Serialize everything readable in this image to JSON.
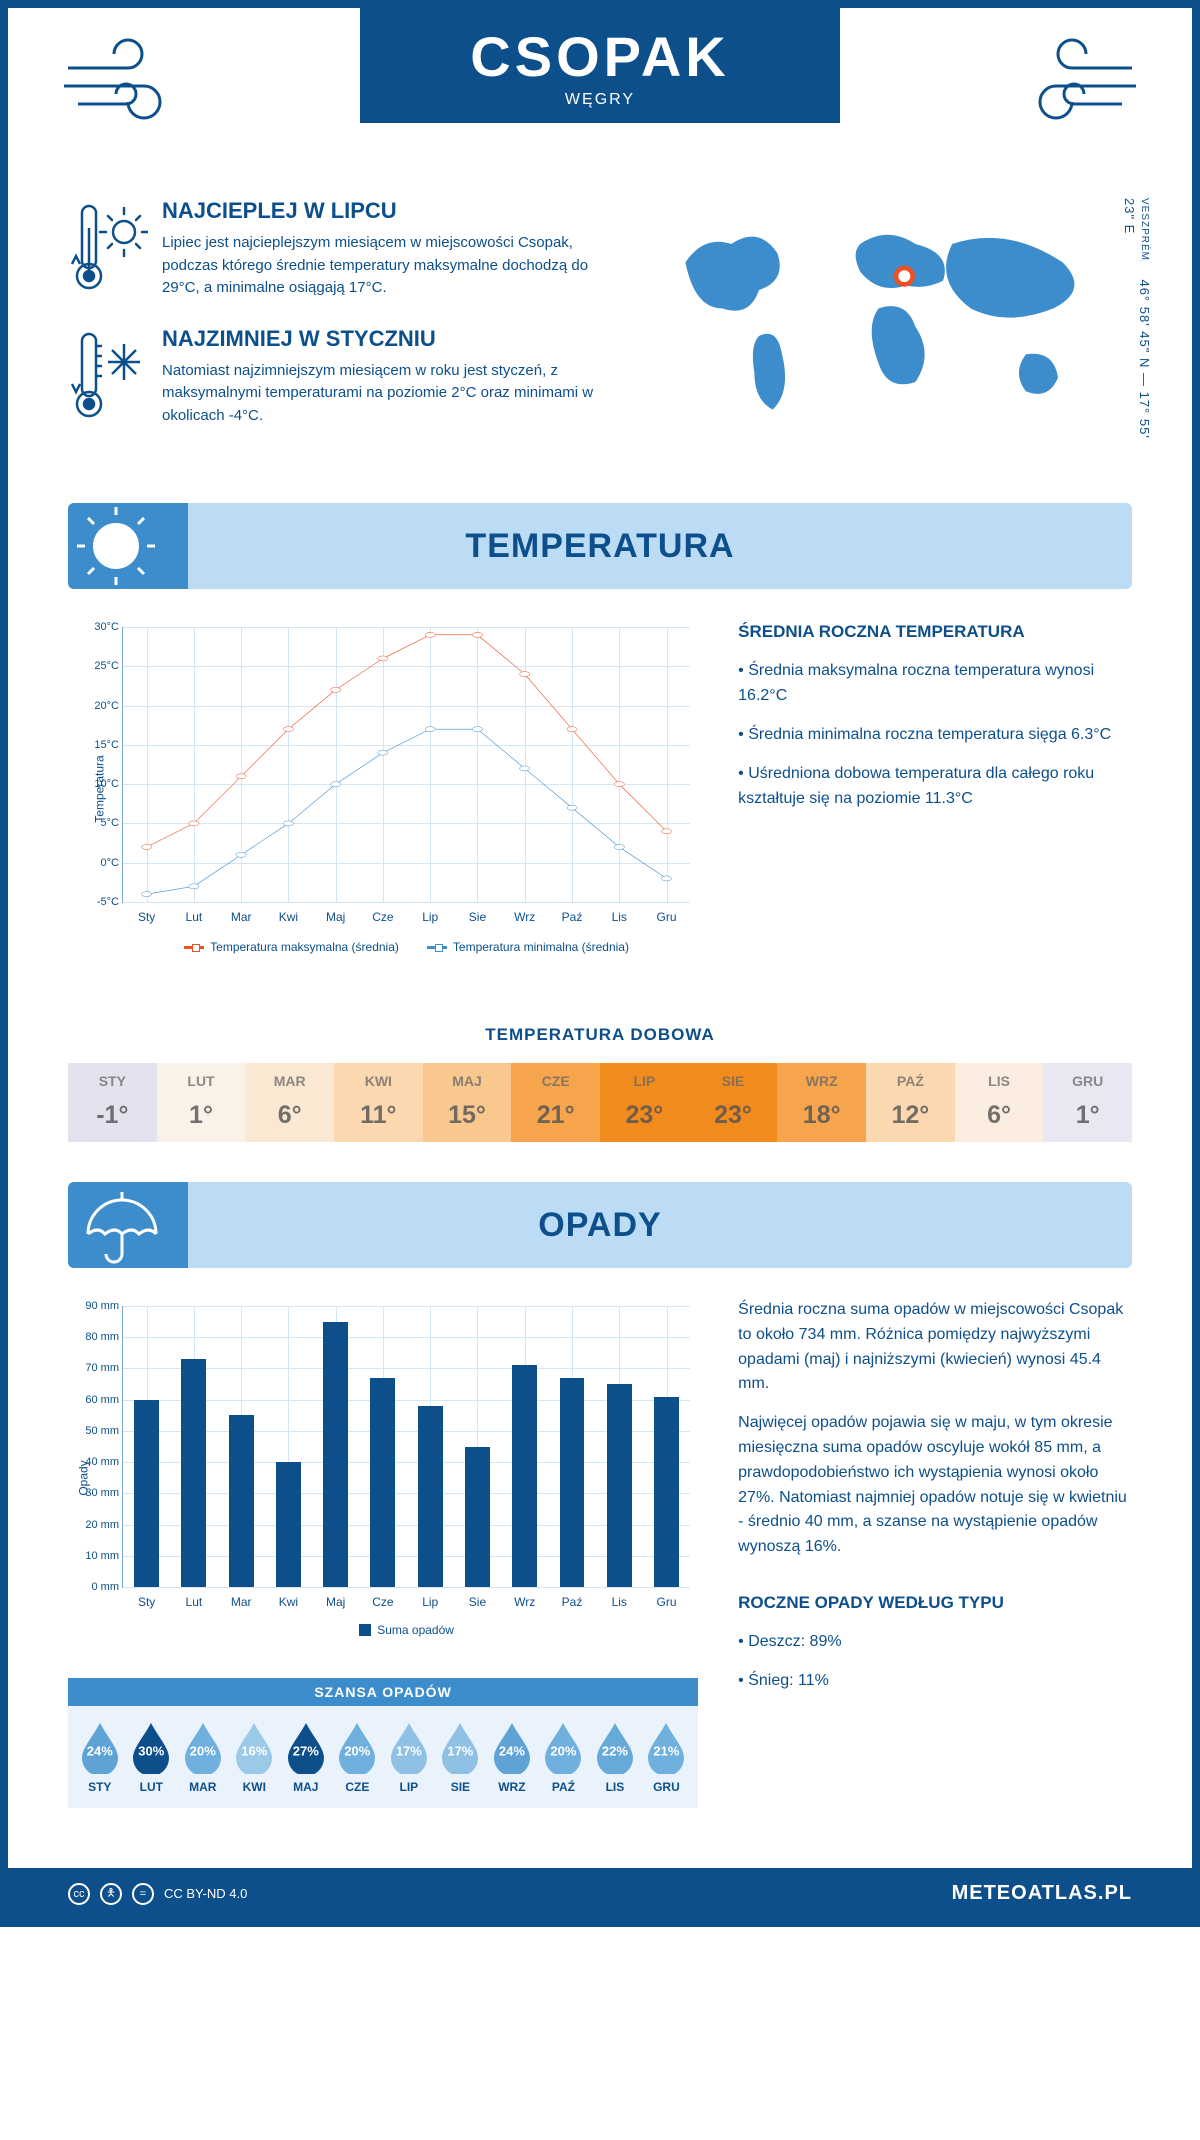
{
  "header": {
    "city": "CSOPAK",
    "country": "WĘGRY"
  },
  "coords": "46° 58' 45\" N — 17° 55' 23\" E",
  "region_label": "VESZPRÉM",
  "intro": {
    "hot": {
      "title": "NAJCIEPLEJ W LIPCU",
      "text": "Lipiec jest najcieplejszym miesiącem w miejscowości Csopak, podczas którego średnie temperatury maksymalne dochodzą do 29°C, a minimalne osiągają 17°C."
    },
    "cold": {
      "title": "NAJZIMNIEJ W STYCZNIU",
      "text": "Natomiast najzimniejszym miesiącem w roku jest styczeń, z maksymalnymi temperaturami na poziomie 2°C oraz minimami w okolicach -4°C."
    }
  },
  "months": [
    "Sty",
    "Lut",
    "Mar",
    "Kwi",
    "Maj",
    "Cze",
    "Lip",
    "Sie",
    "Wrz",
    "Paź",
    "Lis",
    "Gru"
  ],
  "months_upper": [
    "STY",
    "LUT",
    "MAR",
    "KWI",
    "MAJ",
    "CZE",
    "LIP",
    "SIE",
    "WRZ",
    "PAŹ",
    "LIS",
    "GRU"
  ],
  "temperature": {
    "section_label": "TEMPERATURA",
    "y_axis_label": "Temperatura",
    "y_ticks": [
      -5,
      0,
      5,
      10,
      15,
      20,
      25,
      30
    ],
    "y_tick_labels": [
      "-5°C",
      "0°C",
      "5°C",
      "10°C",
      "15°C",
      "20°C",
      "25°C",
      "30°C"
    ],
    "ylim": [
      -5,
      30
    ],
    "max_color": "#f04e23",
    "min_color": "#3d8ccc",
    "max_series": [
      2,
      5,
      11,
      17,
      22,
      26,
      29,
      29,
      24,
      17,
      10,
      4
    ],
    "min_series": [
      -4,
      -3,
      1,
      5,
      10,
      14,
      17,
      17,
      12,
      7,
      2,
      -2
    ],
    "legend_max": "Temperatura maksymalna (średnia)",
    "legend_min": "Temperatura minimalna (średnia)",
    "avg_title": "ŚREDNIA ROCZNA TEMPERATURA",
    "avg_b1": "• Średnia maksymalna roczna temperatura wynosi 16.2°C",
    "avg_b2": "• Średnia minimalna roczna temperatura sięga 6.3°C",
    "avg_b3": "• Uśredniona dobowa temperatura dla całego roku kształtuje się na poziomie 11.3°C",
    "daily_title": "TEMPERATURA DOBOWA",
    "daily_values": [
      "-1°",
      "1°",
      "6°",
      "11°",
      "15°",
      "21°",
      "23°",
      "23°",
      "18°",
      "12°",
      "6°",
      "1°"
    ],
    "daily_colors": [
      "#e4e2ef",
      "#faf2e9",
      "#fbe8d3",
      "#fbd8b0",
      "#f9c88e",
      "#f6a54c",
      "#f28b1d",
      "#f28b1d",
      "#f6a54c",
      "#fbd8b0",
      "#fbeee0",
      "#e9e7f2"
    ]
  },
  "precip": {
    "section_label": "OPADY",
    "y_axis_label": "Opady",
    "y_ticks": [
      0,
      10,
      20,
      30,
      40,
      50,
      60,
      70,
      80,
      90
    ],
    "y_tick_labels": [
      "0 mm",
      "10 mm",
      "20 mm",
      "30 mm",
      "40 mm",
      "50 mm",
      "60 mm",
      "70 mm",
      "80 mm",
      "90 mm"
    ],
    "ylim": [
      0,
      90
    ],
    "bar_color": "#0d4f8b",
    "values": [
      60,
      73,
      55,
      40,
      85,
      67,
      58,
      45,
      71,
      67,
      65,
      61
    ],
    "legend": "Suma opadów",
    "para1": "Średnia roczna suma opadów w miejscowości Csopak to około 734 mm. Różnica pomiędzy najwyższymi opadami (maj) i najniższymi (kwiecień) wynosi 45.4 mm.",
    "para2": "Najwięcej opadów pojawia się w maju, w tym okresie miesięczna suma opadów oscyluje wokół 85 mm, a prawdopodobieństwo ich wystąpienia wynosi około 27%. Natomiast najmniej opadów notuje się w kwietniu - średnio 40 mm, a szanse na wystąpienie opadów wynoszą 16%.",
    "drops_title": "SZANSA OPADÓW",
    "drops_pct": [
      "24%",
      "30%",
      "20%",
      "16%",
      "27%",
      "20%",
      "17%",
      "17%",
      "24%",
      "20%",
      "22%",
      "21%"
    ],
    "drops_colors": [
      "#5fa3d6",
      "#0d4f8b",
      "#6fb0de",
      "#9bc9e8",
      "#0d4f8b",
      "#6fb0de",
      "#8fc1e4",
      "#8fc1e4",
      "#5fa3d6",
      "#6fb0de",
      "#66aad9",
      "#6fb0de"
    ],
    "type_title": "ROCZNE OPADY WEDŁUG TYPU",
    "type_b1": "• Deszcz: 89%",
    "type_b2": "• Śnieg: 11%"
  },
  "footer": {
    "license": "CC BY-ND 4.0",
    "site": "METEOATLAS.PL"
  },
  "colors": {
    "primary": "#0d4f8b",
    "section_bar": "#bcdcf5",
    "section_icon": "#3d8ccc"
  }
}
